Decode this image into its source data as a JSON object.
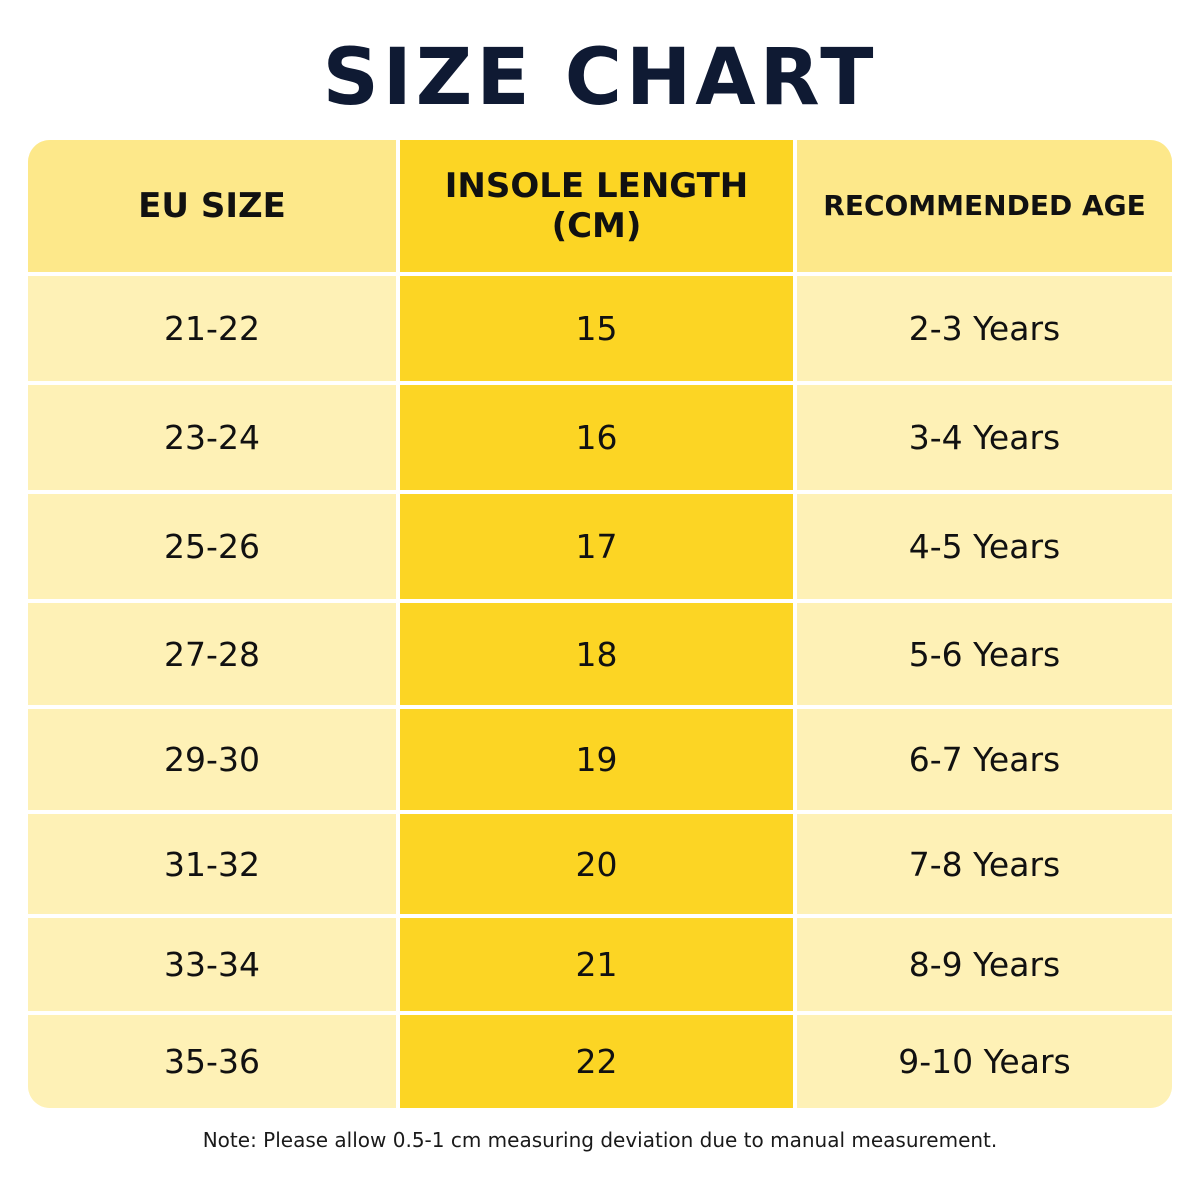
{
  "title": "SIZE CHART",
  "chart_data": {
    "type": "table",
    "columns": [
      "EU SIZE",
      "INSOLE LENGTH (CM)",
      "RECOMMENDED AGE"
    ],
    "rows": [
      [
        "21-22",
        "15",
        "2-3 Years"
      ],
      [
        "23-24",
        "16",
        "3-4 Years"
      ],
      [
        "25-26",
        "17",
        "4-5 Years"
      ],
      [
        "27-28",
        "18",
        "5-6 Years"
      ],
      [
        "29-30",
        "19",
        "6-7 Years"
      ],
      [
        "31-32",
        "20",
        "7-8 Years"
      ],
      [
        "33-34",
        "21",
        "8-9 Years"
      ],
      [
        "35-36",
        "22",
        "9-10 Years"
      ]
    ],
    "colors": {
      "title": "#0f1a33",
      "header_light": "#fde88a",
      "header_accent": "#fcd524",
      "cell_light": "#fef1b6",
      "cell_accent": "#fcd524",
      "divider": "#ffffff"
    }
  },
  "note": "Note: Please allow 0.5-1 cm measuring deviation due to manual measurement."
}
